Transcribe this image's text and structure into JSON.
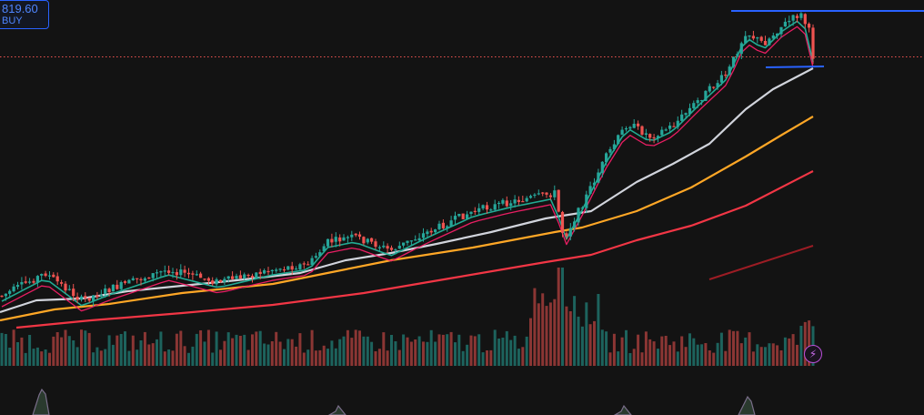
{
  "order_button": {
    "price": "819.60",
    "label": "BUY"
  },
  "icons": {
    "lightning": "lightning-bolt-icon"
  },
  "colors": {
    "background": "#131313",
    "candle_up": "#26a69a",
    "candle_down": "#ef5350",
    "ema_fast": "#22ab94",
    "ema_mid": "#e91e63",
    "ma_50": "#d1d4dc",
    "ma_100": "#ffa726",
    "ma_200": "#f23645",
    "ma_long": "#9c1c24",
    "trend_line": "#2962ff",
    "price_line": "#ef5350",
    "oscillator": "#7a6e8a"
  },
  "chart_data": {
    "type": "candlestick",
    "candles": 205,
    "last_price": 819.6,
    "overlays": [
      "ema-fast",
      "ema-mid",
      "ma-50",
      "ma-100",
      "ma-200",
      "ma-long"
    ],
    "volume": "histogram",
    "lower_pane": "oscillator",
    "drawings": [
      "horizontal-resistance-line",
      "horizontal-support-line",
      "last-price-line"
    ]
  }
}
